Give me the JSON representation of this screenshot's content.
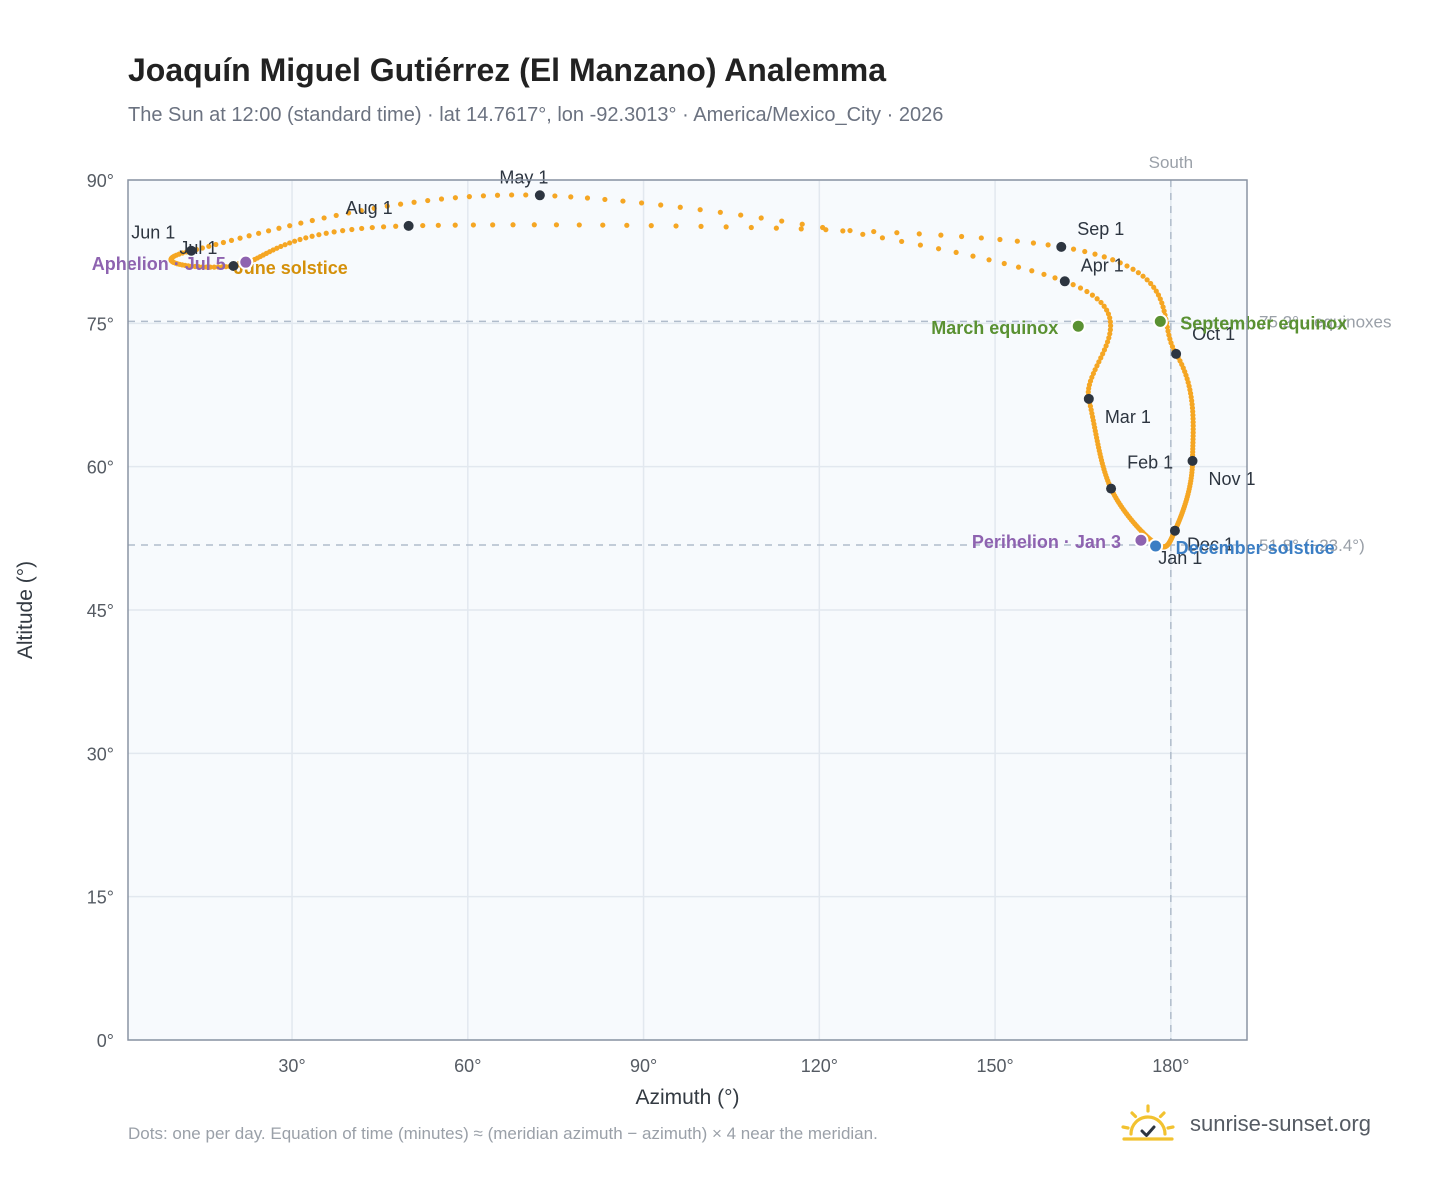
{
  "title": "Joaquín Miguel Gutiérrez (El Manzano) Analemma",
  "subtitle": "The Sun at 12:00 (standard time) · lat 14.7617°, lon -92.3013° · America/Mexico_City · 2026",
  "footnote": "Dots: one per day. Equation of time (minutes) ≈ (meridian azimuth − azimuth) × 4 near the meridian.",
  "brand": {
    "name": "sunrise-sunset.org",
    "icon": "sun-logo-icon"
  },
  "colors": {
    "analemma": "#f5a623",
    "month_marker": "#2d3540",
    "equinox": "#5a9132",
    "june_solstice": "#d4900a",
    "december_solstice": "#3b7ec4",
    "perihelion_aphelion": "#8e63b0",
    "plot_background": "#f7fafd",
    "axis": "#8a94a3",
    "guide": "#b0bccb"
  },
  "chart_data": {
    "type": "scatter",
    "title": "Joaquín Miguel Gutiérrez (El Manzano) Analemma",
    "xlabel": "Azimuth (°)",
    "ylabel": "Altitude (°)",
    "xlim": [
      2,
      193
    ],
    "ylim": [
      0,
      90
    ],
    "xticks": [
      30,
      60,
      90,
      120,
      150,
      180
    ],
    "yticks": [
      0,
      15,
      30,
      45,
      60,
      75,
      90
    ],
    "xtick_labels": [
      "30°",
      "60°",
      "90°",
      "120°",
      "150°",
      "180°"
    ],
    "ytick_labels": [
      "0°",
      "15°",
      "30°",
      "45°",
      "60°",
      "75°",
      "90°"
    ],
    "grid": true,
    "meridian": {
      "azimuth": 180,
      "label": "South"
    },
    "reference_lines": [
      {
        "altitude": 75.2,
        "label": "75.2° · equinoxes"
      },
      {
        "altitude": 51.8,
        "label": "51.8° (−23.4°)"
      }
    ],
    "month_markers": [
      {
        "label": "Jan 1",
        "azimuth": 177.5,
        "altitude": 51.9
      },
      {
        "label": "Feb 1",
        "azimuth": 169.8,
        "altitude": 57.7
      },
      {
        "label": "Mar 1",
        "azimuth": 166.0,
        "altitude": 67.1
      },
      {
        "label": "Apr 1",
        "azimuth": 161.9,
        "altitude": 79.4
      },
      {
        "label": "May 1",
        "azimuth": 72.3,
        "altitude": 88.4
      },
      {
        "label": "Jun 1",
        "azimuth": 12.8,
        "altitude": 82.6
      },
      {
        "label": "Jul 1",
        "azimuth": 20.0,
        "altitude": 81.0
      },
      {
        "label": "Aug 1",
        "azimuth": 49.9,
        "altitude": 85.2
      },
      {
        "label": "Sep 1",
        "azimuth": 161.3,
        "altitude": 83.0
      },
      {
        "label": "Oct 1",
        "azimuth": 180.9,
        "altitude": 71.8
      },
      {
        "label": "Nov 1",
        "azimuth": 183.7,
        "altitude": 60.6
      },
      {
        "label": "Dec 1",
        "azimuth": 180.7,
        "altitude": 53.3
      }
    ],
    "events": [
      {
        "label": "March equinox",
        "azimuth": 164.2,
        "altitude": 74.7,
        "color": "#5a9132"
      },
      {
        "label": "June solstice",
        "azimuth": 22.1,
        "altitude": 81.4,
        "color": "#d4900a"
      },
      {
        "label": "September equinox",
        "azimuth": 178.2,
        "altitude": 75.2,
        "color": "#5a9132"
      },
      {
        "label": "December solstice",
        "azimuth": 177.4,
        "altitude": 51.7,
        "color": "#3b7ec4"
      },
      {
        "label": "Perihelion · Jan 3",
        "azimuth": 174.9,
        "altitude": 52.3,
        "color": "#8e63b0"
      },
      {
        "label": "Aphelion · Jul 5",
        "azimuth": 22.1,
        "altitude": 81.4,
        "color": "#8e63b0"
      }
    ]
  }
}
